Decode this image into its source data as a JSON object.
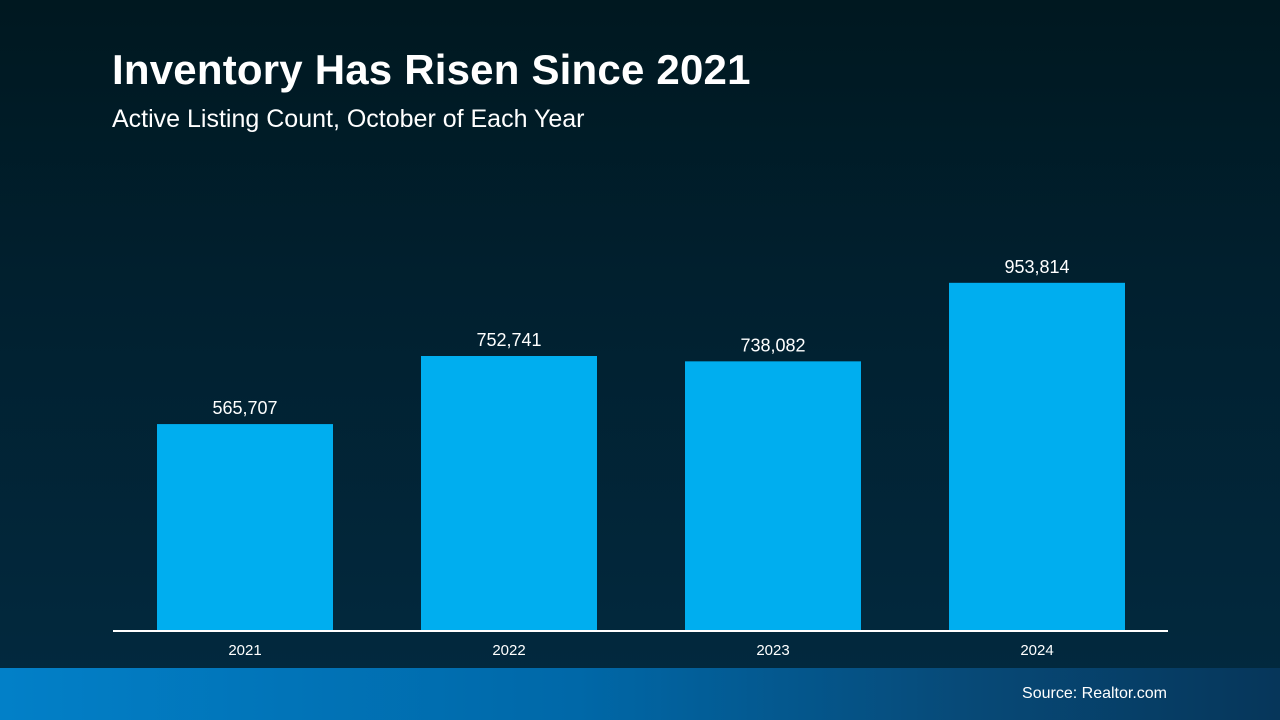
{
  "chart_data": {
    "type": "bar",
    "title": "Inventory Has Risen Since 2021",
    "subtitle": "Active Listing Count, October of Each Year",
    "categories": [
      "2021",
      "2022",
      "2023",
      "2024"
    ],
    "values": [
      565707,
      752741,
      738082,
      953814
    ],
    "data_labels": [
      "565,707",
      "752,741",
      "738,082",
      "953,814"
    ],
    "xlabel": "",
    "ylabel": "",
    "ylim": [
      0,
      1000000
    ],
    "grid": false,
    "legend": "none",
    "bar_color": "#00aeef"
  },
  "footer": {
    "source": "Source: Realtor.com"
  }
}
